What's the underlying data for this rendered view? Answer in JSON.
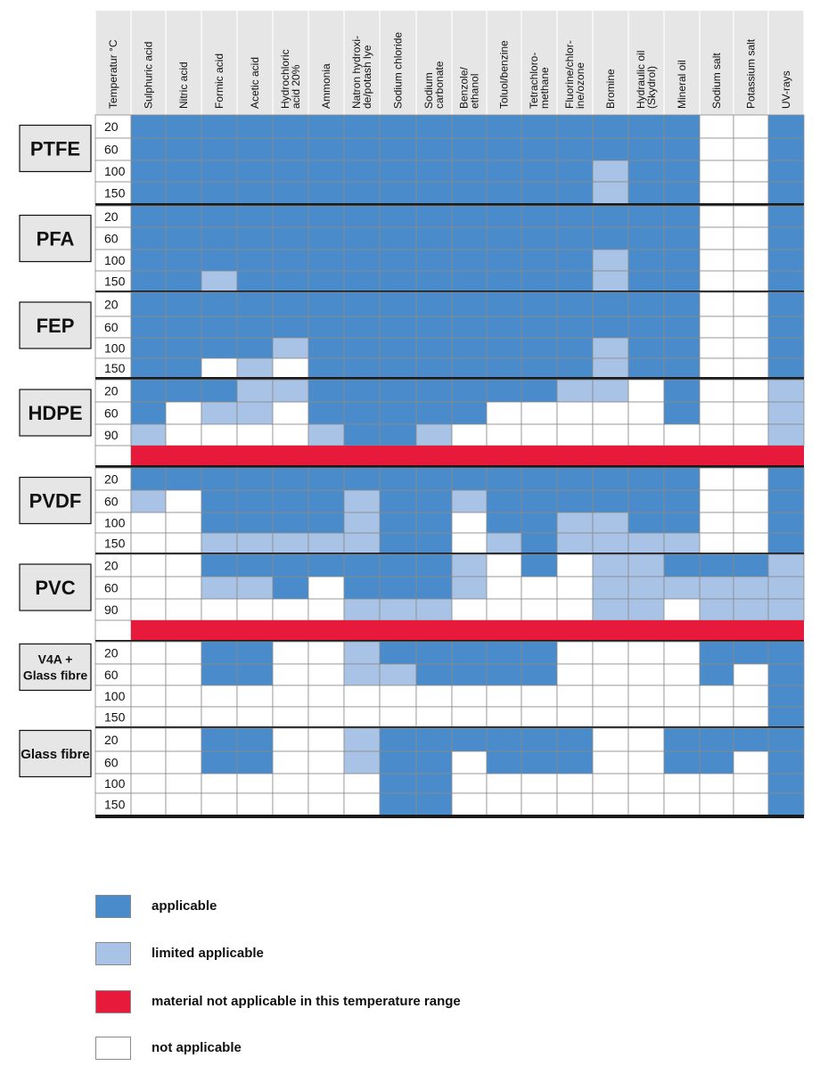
{
  "chart_data": {
    "type": "table",
    "temperature_header": "Temperatur °C",
    "media": [
      "Sulphuric acid",
      "Nitric acid",
      "Formic acid",
      "Acetic acid",
      "Hydrochloric\nacid 20%",
      "Ammonia",
      "Natron hydroxi-\nde/potash lye",
      "Sodium chloride",
      "Sodium\ncarbonate",
      "Benzole/\nethanol",
      "Toluol/benzine",
      "Tetrachloro-\nmethane",
      "Fluorine/chlor-\nine/ozone",
      "Bromine",
      "Hydraulic oil\n(Skydrol)",
      "Mineral oil",
      "Sodium salt",
      "Potassium salt",
      "UV-rays"
    ],
    "rating_codes": {
      "A": "applicable",
      "L": "limited applicable",
      "X": "material not applicable in this temperature range",
      "N": "not applicable"
    },
    "materials": [
      {
        "name": "PTFE",
        "rows": [
          {
            "t": "20",
            "r": "AAAAAAAAAAAAAAAANNA"
          },
          {
            "t": "60",
            "r": "AAAAAAAAAAAAAAAANNA"
          },
          {
            "t": "100",
            "r": "AAAAAAAAAAAAALAANNA"
          },
          {
            "t": "150",
            "r": "AAAAAAAAAAAAALAANNA"
          }
        ]
      },
      {
        "name": "PFA",
        "rows": [
          {
            "t": "20",
            "r": "AAAAAAAAAAAAAAAANNA"
          },
          {
            "t": "60",
            "r": "AAAAAAAAAAAAAAAANNA"
          },
          {
            "t": "100",
            "r": "AAAAAAAAAAAAALAANNA"
          },
          {
            "t": "150",
            "r": "AALAAAAAAAAAALAANNA"
          }
        ]
      },
      {
        "name": "FEP",
        "rows": [
          {
            "t": "20",
            "r": "AAAAAAAAAAAAAAAANNA"
          },
          {
            "t": "60",
            "r": "AAAAAAAAAAAAAAAANNA"
          },
          {
            "t": "100",
            "r": "AAAALAAAAAAAALAANNA"
          },
          {
            "t": "150",
            "r": "AANLNAAAAAAAALAANNA"
          }
        ]
      },
      {
        "name": "HDPE",
        "rows": [
          {
            "t": "20",
            "r": "AAALLAAAAAAALLNANNL"
          },
          {
            "t": "60",
            "r": "ANLLNAAAAANNNNNANNL"
          },
          {
            "t": "90",
            "r": "LNNNNLAALNNNNNNNNNL"
          },
          {
            "t": "",
            "r": "XXXXXXXXXXXXXXXXXXX"
          }
        ]
      },
      {
        "name": "PVDF",
        "rows": [
          {
            "t": "20",
            "r": "AAAAAAAAAAAAAAAANNA"
          },
          {
            "t": "60",
            "r": "LNAAAALAALAAAAAANNA"
          },
          {
            "t": "100",
            "r": "NNAAAALAANAALLAANNA"
          },
          {
            "t": "150",
            "r": "NNLLLLLAANLALLLLNNA"
          }
        ]
      },
      {
        "name": "PVC",
        "rows": [
          {
            "t": "20",
            "r": "NNAAAAAAALNANLLAAAL"
          },
          {
            "t": "60",
            "r": "NNLLANAAALNNNLLLLLL"
          },
          {
            "t": "90",
            "r": "NNNNNNLLLNNNNLLNLLL"
          },
          {
            "t": "",
            "r": "XXXXXXXXXXXXXXXXXXX"
          }
        ]
      },
      {
        "name": "V4A +\nGlass fibre",
        "rows": [
          {
            "t": "20",
            "r": "NNAANNLAAAAANNNNAAA"
          },
          {
            "t": "60",
            "r": "NNAANNLLAAAANNNNANA"
          },
          {
            "t": "100",
            "r": "NNNNNNNNNNNNNNNNNNA"
          },
          {
            "t": "150",
            "r": "NNNNNNNNNNNNNNNNNNA"
          }
        ]
      },
      {
        "name": "Glass fibre",
        "rows": [
          {
            "t": "20",
            "r": "NNAANNLAAAAAANNAAAA"
          },
          {
            "t": "60",
            "r": "NNAANNLAANAAANNAANA"
          },
          {
            "t": "100",
            "r": "NNNNNNNAANNNNNNNNNA"
          },
          {
            "t": "150",
            "r": "NNNNNNNAANNNNNNNNNA"
          }
        ]
      }
    ],
    "legend": [
      {
        "code": "A",
        "label": "applicable"
      },
      {
        "code": "L",
        "label": "limited applicable"
      },
      {
        "code": "X",
        "label": "material not applicable in this temperature range"
      },
      {
        "code": "N",
        "label": "not applicable"
      }
    ]
  },
  "colors": {
    "A": "#4a8ccb",
    "L": "#a9c3e6",
    "X": "#e81a3b",
    "N": "#ffffff",
    "grid": "#8a8a8a",
    "header_bg": "#e6e6e6",
    "separator": "#1a1a1a",
    "material_box": "#e6e6e6"
  }
}
